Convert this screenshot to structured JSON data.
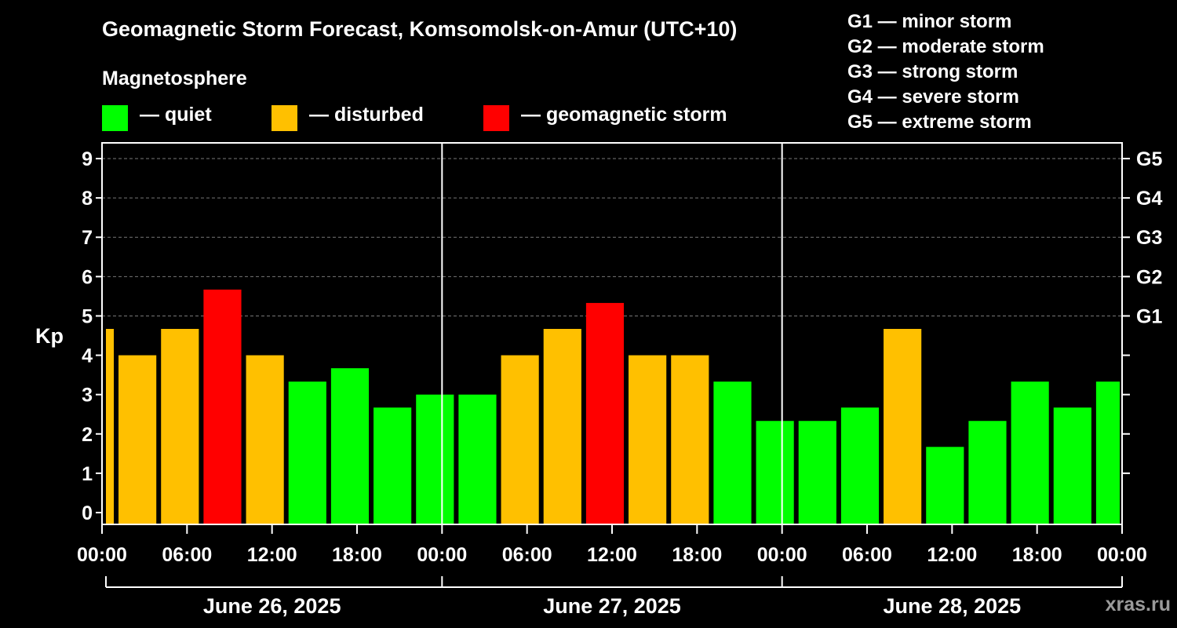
{
  "title": "Geomagnetic Storm Forecast, Komsomolsk-on-Amur (UTC+10)",
  "legend": {
    "heading": "Magnetosphere",
    "items": [
      {
        "label": "— quiet",
        "color": "#00ff00"
      },
      {
        "label": "— disturbed",
        "color": "#ffc000"
      },
      {
        "label": "— geomagnetic storm",
        "color": "#ff0000"
      }
    ]
  },
  "g_scale": [
    "G1 — minor storm",
    "G2 — moderate storm",
    "G3 — strong storm",
    "G4 — severe storm",
    "G5 — extreme storm"
  ],
  "watermark": "xras.ru",
  "chart_data": {
    "type": "bar",
    "title": "Geomagnetic Storm Forecast, Komsomolsk-on-Amur (UTC+10)",
    "ylabel": "Kp",
    "ylim": [
      -0.3,
      9.4
    ],
    "yticks": [
      0,
      1,
      2,
      3,
      4,
      5,
      6,
      7,
      8,
      9
    ],
    "right_axis_labels": [
      {
        "kp": 5,
        "label": "G1"
      },
      {
        "kp": 6,
        "label": "G2"
      },
      {
        "kp": 7,
        "label": "G3"
      },
      {
        "kp": 8,
        "label": "G4"
      },
      {
        "kp": 9,
        "label": "G5"
      }
    ],
    "x_hours_range": [
      0,
      72
    ],
    "x_ticks": [
      {
        "hour": 0,
        "label": "00:00"
      },
      {
        "hour": 6,
        "label": "06:00"
      },
      {
        "hour": 12,
        "label": "12:00"
      },
      {
        "hour": 18,
        "label": "18:00"
      },
      {
        "hour": 24,
        "label": "00:00"
      },
      {
        "hour": 30,
        "label": "06:00"
      },
      {
        "hour": 36,
        "label": "12:00"
      },
      {
        "hour": 42,
        "label": "18:00"
      },
      {
        "hour": 48,
        "label": "00:00"
      },
      {
        "hour": 54,
        "label": "06:00"
      },
      {
        "hour": 60,
        "label": "12:00"
      },
      {
        "hour": 66,
        "label": "18:00"
      },
      {
        "hour": 72,
        "label": "00:00"
      }
    ],
    "days": [
      {
        "label": "June 26, 2025",
        "start_hour": 0,
        "end_hour": 24
      },
      {
        "label": "June 27, 2025",
        "start_hour": 24,
        "end_hour": 48
      },
      {
        "label": "June 28, 2025",
        "start_hour": 48,
        "end_hour": 72
      }
    ],
    "bar_slot_hours": 3,
    "bars": [
      {
        "start_hour": -1,
        "end_hour": 1,
        "kp": 4.67,
        "level": "disturbed"
      },
      {
        "start_hour": 1,
        "end_hour": 4,
        "kp": 4.0,
        "level": "disturbed"
      },
      {
        "start_hour": 4,
        "end_hour": 7,
        "kp": 4.67,
        "level": "disturbed"
      },
      {
        "start_hour": 7,
        "end_hour": 10,
        "kp": 5.67,
        "level": "storm"
      },
      {
        "start_hour": 10,
        "end_hour": 13,
        "kp": 4.0,
        "level": "disturbed"
      },
      {
        "start_hour": 13,
        "end_hour": 16,
        "kp": 3.33,
        "level": "quiet"
      },
      {
        "start_hour": 16,
        "end_hour": 19,
        "kp": 3.67,
        "level": "quiet"
      },
      {
        "start_hour": 19,
        "end_hour": 22,
        "kp": 2.67,
        "level": "quiet"
      },
      {
        "start_hour": 22,
        "end_hour": 25,
        "kp": 3.0,
        "level": "quiet"
      },
      {
        "start_hour": 25,
        "end_hour": 28,
        "kp": 3.0,
        "level": "quiet"
      },
      {
        "start_hour": 28,
        "end_hour": 31,
        "kp": 4.0,
        "level": "disturbed"
      },
      {
        "start_hour": 31,
        "end_hour": 34,
        "kp": 4.67,
        "level": "disturbed"
      },
      {
        "start_hour": 34,
        "end_hour": 37,
        "kp": 5.33,
        "level": "storm"
      },
      {
        "start_hour": 37,
        "end_hour": 40,
        "kp": 4.0,
        "level": "disturbed"
      },
      {
        "start_hour": 40,
        "end_hour": 43,
        "kp": 4.0,
        "level": "disturbed"
      },
      {
        "start_hour": 43,
        "end_hour": 46,
        "kp": 3.33,
        "level": "quiet"
      },
      {
        "start_hour": 46,
        "end_hour": 49,
        "kp": 2.33,
        "level": "quiet"
      },
      {
        "start_hour": 49,
        "end_hour": 52,
        "kp": 2.33,
        "level": "quiet"
      },
      {
        "start_hour": 52,
        "end_hour": 55,
        "kp": 2.67,
        "level": "quiet"
      },
      {
        "start_hour": 55,
        "end_hour": 58,
        "kp": 4.67,
        "level": "disturbed"
      },
      {
        "start_hour": 58,
        "end_hour": 61,
        "kp": 1.67,
        "level": "quiet"
      },
      {
        "start_hour": 61,
        "end_hour": 64,
        "kp": 2.33,
        "level": "quiet"
      },
      {
        "start_hour": 64,
        "end_hour": 67,
        "kp": 3.33,
        "level": "quiet"
      },
      {
        "start_hour": 67,
        "end_hour": 70,
        "kp": 2.67,
        "level": "quiet"
      },
      {
        "start_hour": 70,
        "end_hour": 72,
        "kp": 3.33,
        "level": "quiet"
      }
    ],
    "level_colors": {
      "quiet": "#00ff00",
      "disturbed": "#ffc000",
      "storm": "#ff0000"
    },
    "grid": true
  }
}
